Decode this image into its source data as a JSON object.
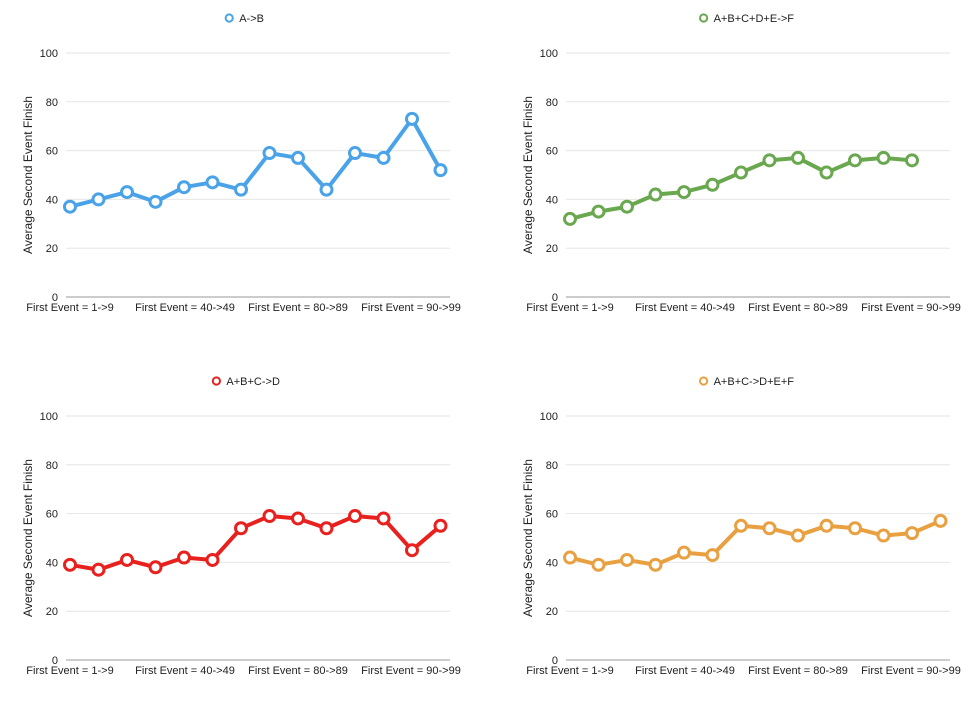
{
  "chart_data": [
    {
      "type": "line",
      "title": "",
      "ylabel": "Average Second Event Finish",
      "xlabel": "",
      "ylim": [
        0,
        100
      ],
      "yticks": [
        0,
        20,
        40,
        60,
        80,
        100
      ],
      "grid": "horizontal",
      "legend_position": "top-center",
      "x_tick_labels": [
        "First Event = 1->9",
        "First Event = 40->49",
        "First Event = 80->89",
        "First Event = 90->99"
      ],
      "series": [
        {
          "name": "A->B",
          "color": "#4aa3e8",
          "values": [
            37,
            40,
            43,
            39,
            45,
            47,
            44,
            59,
            57,
            44,
            59,
            57,
            73,
            52
          ]
        }
      ]
    },
    {
      "type": "line",
      "title": "",
      "ylabel": "Average Second Event Finish",
      "xlabel": "",
      "ylim": [
        0,
        100
      ],
      "yticks": [
        0,
        20,
        40,
        60,
        80,
        100
      ],
      "grid": "horizontal",
      "legend_position": "top-center",
      "x_tick_labels": [
        "First Event = 1->9",
        "First Event = 40->49",
        "First Event = 80->89",
        "First Event = 90->99"
      ],
      "series": [
        {
          "name": "A+B+C+D+E->F",
          "color": "#6aa84f",
          "values": [
            32,
            35,
            37,
            42,
            43,
            46,
            51,
            56,
            57,
            51,
            56,
            57,
            56
          ]
        }
      ]
    },
    {
      "type": "line",
      "title": "",
      "ylabel": "Average Second Event Finish",
      "xlabel": "",
      "ylim": [
        0,
        100
      ],
      "yticks": [
        0,
        20,
        40,
        60,
        80,
        100
      ],
      "grid": "horizontal",
      "legend_position": "top-center",
      "x_tick_labels": [
        "First Event = 1->9",
        "First Event = 40->49",
        "First Event = 80->89",
        "First Event = 90->99"
      ],
      "series": [
        {
          "name": "A+B+C->D",
          "color": "#e8211e",
          "values": [
            39,
            37,
            41,
            38,
            42,
            41,
            54,
            59,
            58,
            54,
            59,
            58,
            45,
            55
          ]
        }
      ]
    },
    {
      "type": "line",
      "title": "",
      "ylabel": "Average Second Event Finish",
      "xlabel": "",
      "ylim": [
        0,
        100
      ],
      "yticks": [
        0,
        20,
        40,
        60,
        80,
        100
      ],
      "grid": "horizontal",
      "legend_position": "top-center",
      "x_tick_labels": [
        "First Event = 1->9",
        "First Event = 40->49",
        "First Event = 80->89",
        "First Event = 90->99"
      ],
      "series": [
        {
          "name": "A+B+C->D+E+F",
          "color": "#e9a040",
          "values": [
            42,
            39,
            41,
            39,
            44,
            43,
            55,
            54,
            51,
            55,
            54,
            51,
            52,
            57
          ]
        }
      ]
    }
  ]
}
